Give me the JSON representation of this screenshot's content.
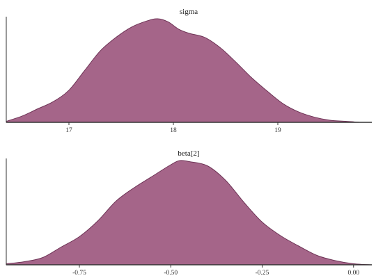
{
  "chart_data": [
    {
      "type": "area",
      "title": "sigma",
      "xlabel": "",
      "ylabel": "",
      "xlim": [
        16.4,
        19.9
      ],
      "ylim": [
        0,
        1.02
      ],
      "xticks": [
        17,
        18,
        19
      ],
      "xtick_labels": [
        "17",
        "18",
        "19"
      ],
      "grid": false,
      "fill_color": "#a56589",
      "line_color": "#6e3456",
      "x": [
        16.4,
        16.55,
        16.7,
        16.85,
        17.0,
        17.15,
        17.3,
        17.45,
        17.6,
        17.75,
        17.85,
        17.95,
        18.05,
        18.15,
        18.3,
        18.45,
        18.6,
        18.75,
        18.9,
        19.05,
        19.2,
        19.35,
        19.5,
        19.65,
        19.8,
        19.9
      ],
      "y": [
        0.01,
        0.06,
        0.13,
        0.2,
        0.31,
        0.5,
        0.69,
        0.82,
        0.92,
        0.98,
        1.0,
        0.97,
        0.9,
        0.86,
        0.82,
        0.72,
        0.58,
        0.43,
        0.3,
        0.18,
        0.1,
        0.05,
        0.02,
        0.01,
        0.0,
        0.0
      ]
    },
    {
      "type": "area",
      "title": "beta[2]",
      "xlabel": "",
      "ylabel": "",
      "xlim": [
        -0.95,
        0.05
      ],
      "ylim": [
        0,
        1.02
      ],
      "xticks": [
        -0.75,
        -0.5,
        -0.25,
        0.0
      ],
      "xtick_labels": [
        "-0.75",
        "-0.50",
        "-0.25",
        "0.00"
      ],
      "grid": false,
      "fill_color": "#a56589",
      "line_color": "#6e3456",
      "x": [
        -0.95,
        -0.9,
        -0.85,
        -0.8,
        -0.75,
        -0.7,
        -0.65,
        -0.6,
        -0.55,
        -0.5,
        -0.475,
        -0.45,
        -0.4,
        -0.35,
        -0.3,
        -0.25,
        -0.2,
        -0.15,
        -0.1,
        -0.05,
        0.0,
        0.05
      ],
      "y": [
        0.01,
        0.03,
        0.07,
        0.17,
        0.27,
        0.42,
        0.61,
        0.74,
        0.85,
        0.96,
        1.0,
        0.99,
        0.95,
        0.81,
        0.6,
        0.41,
        0.28,
        0.18,
        0.09,
        0.04,
        0.01,
        0.0
      ]
    }
  ]
}
